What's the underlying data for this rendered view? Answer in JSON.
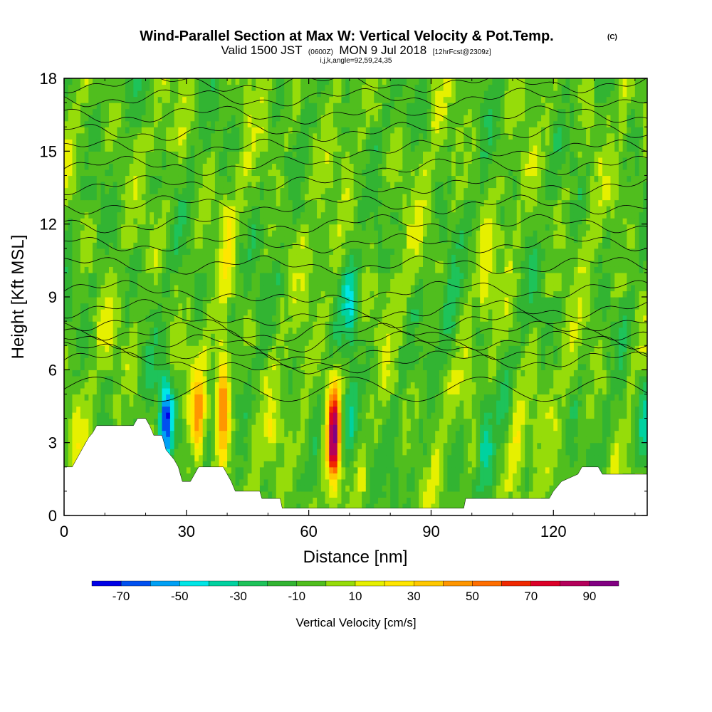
{
  "title": "Wind-Parallel Section at Max W: Vertical Velocity & Pot.Temp.",
  "copyright_mark": "(C)",
  "subtitle_valid": "Valid 1500 JST",
  "subtitle_utc": "(0600Z)",
  "subtitle_date": "MON 9 Jul 2018",
  "subtitle_fcst": "[12hrFcst@2309z]",
  "subtitle_indices": "i,j,k,angle=92,59,24,35",
  "chart_data": {
    "type": "heatmap",
    "xlabel": "Distance [nm]",
    "ylabel": "Height [Kft MSL]",
    "xlim": [
      0,
      143
    ],
    "ylim": [
      0,
      18
    ],
    "x_ticks": [
      0,
      30,
      60,
      90,
      120
    ],
    "y_ticks": [
      0,
      3,
      6,
      9,
      12,
      15,
      18
    ],
    "colorbar": {
      "title": "Vertical Velocity [cm/s]",
      "labels": [
        "-70",
        "-50",
        "-30",
        "-10",
        "10",
        "30",
        "50",
        "70",
        "90"
      ],
      "bounds": [
        -80,
        -70,
        -60,
        -50,
        -40,
        -30,
        -20,
        -10,
        0,
        10,
        20,
        30,
        40,
        50,
        60,
        70,
        80,
        90,
        100
      ],
      "colors": [
        "#0000e6",
        "#0050f0",
        "#00a0f5",
        "#00e6e6",
        "#00d2a0",
        "#1ec35a",
        "#32b432",
        "#50be1e",
        "#96dc0a",
        "#e6f000",
        "#ffe600",
        "#ffc800",
        "#ff9600",
        "#ff6e00",
        "#f02800",
        "#dc0028",
        "#b4005a",
        "#820082",
        "#500096"
      ]
    },
    "terrain_kft": [
      [
        0,
        2.0
      ],
      [
        2,
        2.0
      ],
      [
        3,
        2.3
      ],
      [
        4,
        2.6
      ],
      [
        5,
        2.9
      ],
      [
        6,
        3.2
      ],
      [
        7,
        3.4
      ],
      [
        8,
        3.7
      ],
      [
        14,
        3.7
      ],
      [
        17,
        3.7
      ],
      [
        18,
        4.0
      ],
      [
        20,
        4.0
      ],
      [
        21,
        3.7
      ],
      [
        22,
        3.3
      ],
      [
        24,
        3.3
      ],
      [
        25,
        2.7
      ],
      [
        27,
        2.3
      ],
      [
        28,
        2.0
      ],
      [
        29,
        1.4
      ],
      [
        31,
        1.4
      ],
      [
        33,
        2.0
      ],
      [
        39,
        2.0
      ],
      [
        40,
        1.7
      ],
      [
        41,
        1.4
      ],
      [
        42,
        1.0
      ],
      [
        48,
        1.0
      ],
      [
        48.5,
        0.7
      ],
      [
        53,
        0.7
      ],
      [
        53.5,
        0.3
      ],
      [
        98,
        0.3
      ],
      [
        98.5,
        0.7
      ],
      [
        119,
        0.7
      ],
      [
        120,
        1.0
      ],
      [
        122,
        1.4
      ],
      [
        126,
        1.7
      ],
      [
        127,
        2.0
      ],
      [
        131,
        2.0
      ],
      [
        132,
        1.7
      ],
      [
        143,
        1.7
      ]
    ],
    "updrafts": [
      {
        "x": 66,
        "z": 3.3,
        "peak": 95
      },
      {
        "x": 39,
        "z": 4.8,
        "peak": 68
      },
      {
        "x": 33,
        "z": 4.0,
        "peak": 38
      },
      {
        "x": 111,
        "z": 2.8,
        "peak": 28
      },
      {
        "x": 59,
        "z": 3.0,
        "peak": 12
      },
      {
        "x": 3,
        "z": 4.0,
        "peak": 12
      },
      {
        "x": 51,
        "z": 3.5,
        "peak": 10
      },
      {
        "x": 40,
        "z": 11.5,
        "peak": 14
      },
      {
        "x": 103,
        "z": 9.5,
        "peak": 12
      }
    ],
    "downdrafts": [
      {
        "x": 25,
        "z": 3.9,
        "peak": -72
      },
      {
        "x": 70,
        "z": 3.8,
        "peak": -30
      },
      {
        "x": 103,
        "z": 3.2,
        "peak": -34
      },
      {
        "x": 143,
        "z": 4.0,
        "peak": -32
      },
      {
        "x": 70,
        "z": 8.6,
        "peak": -28
      },
      {
        "x": 95,
        "z": 8.3,
        "peak": -18
      }
    ]
  }
}
